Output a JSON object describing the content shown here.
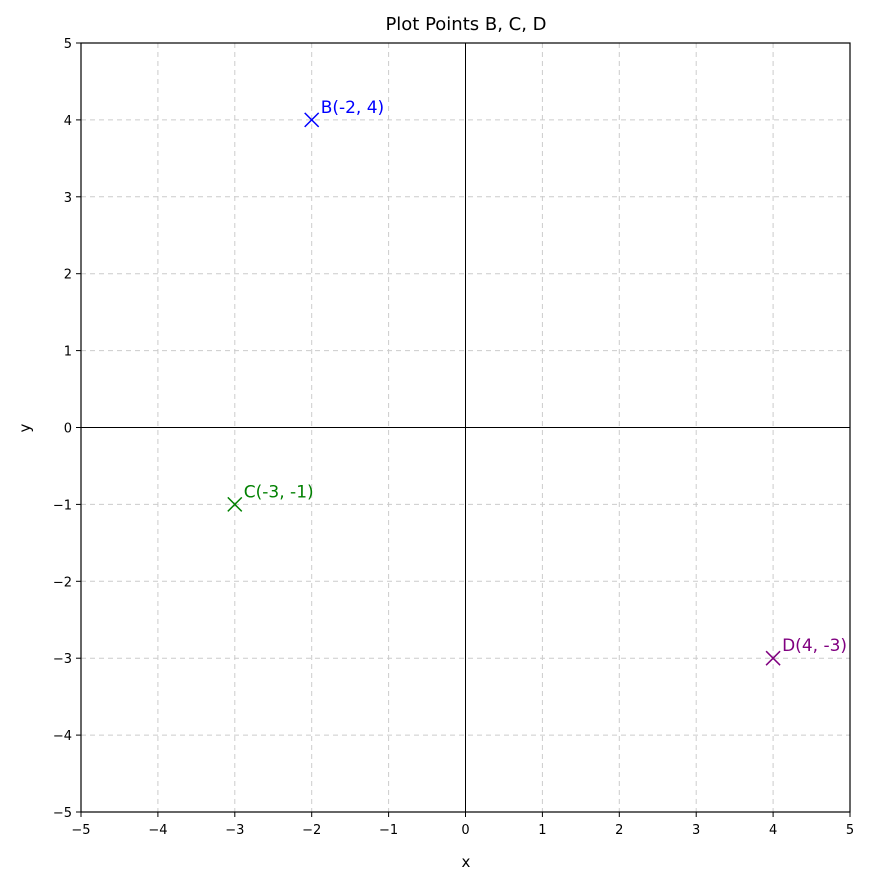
{
  "chart_data": {
    "type": "scatter",
    "title": "Plot Points B, C, D",
    "xlabel": "x",
    "ylabel": "y",
    "xlim": [
      -5,
      5
    ],
    "ylim": [
      -5,
      5
    ],
    "xticks": [
      -5,
      -4,
      -3,
      -2,
      -1,
      0,
      1,
      2,
      3,
      4,
      5
    ],
    "yticks": [
      -5,
      -4,
      -3,
      -2,
      -1,
      0,
      1,
      2,
      3,
      4,
      5
    ],
    "xtick_labels": [
      "−5",
      "−4",
      "−3",
      "−2",
      "−1",
      "0",
      "1",
      "2",
      "3",
      "4",
      "5"
    ],
    "ytick_labels": [
      "−5",
      "−4",
      "−3",
      "−2",
      "−1",
      "0",
      "1",
      "2",
      "3",
      "4",
      "5"
    ],
    "grid": true,
    "grid_style": "dashed",
    "zero_lines": true,
    "marker": "x",
    "points": [
      {
        "label": "B(-2, 4)",
        "x": -2,
        "y": 4,
        "color": "#0000ff"
      },
      {
        "label": "C(-3, -1)",
        "x": -3,
        "y": -1,
        "color": "#008000"
      },
      {
        "label": "D(4, -3)",
        "x": 4,
        "y": -3,
        "color": "#800080"
      }
    ]
  }
}
